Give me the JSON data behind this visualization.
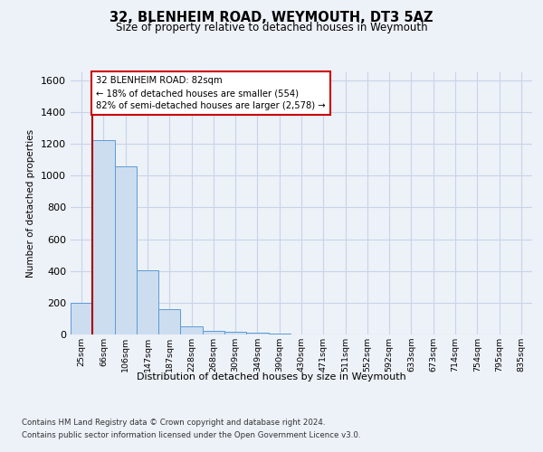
{
  "title": "32, BLENHEIM ROAD, WEYMOUTH, DT3 5AZ",
  "subtitle": "Size of property relative to detached houses in Weymouth",
  "xlabel": "Distribution of detached houses by size in Weymouth",
  "ylabel": "Number of detached properties",
  "categories": [
    "25sqm",
    "66sqm",
    "106sqm",
    "147sqm",
    "187sqm",
    "228sqm",
    "268sqm",
    "309sqm",
    "349sqm",
    "390sqm",
    "430sqm",
    "471sqm",
    "511sqm",
    "552sqm",
    "592sqm",
    "633sqm",
    "673sqm",
    "714sqm",
    "754sqm",
    "795sqm",
    "835sqm"
  ],
  "values": [
    200,
    1225,
    1060,
    405,
    160,
    50,
    20,
    15,
    10,
    3,
    2,
    0,
    0,
    0,
    0,
    0,
    0,
    0,
    0,
    0,
    0
  ],
  "bar_color": "#ccddf0",
  "bar_edge_color": "#5b9bd5",
  "annotation_text": "32 BLENHEIM ROAD: 82sqm\n← 18% of detached houses are smaller (554)\n82% of semi-detached houses are larger (2,578) →",
  "annotation_box_color": "#ffffff",
  "annotation_border_color": "#cc0000",
  "property_line_color": "#aa0000",
  "ylim": [
    0,
    1650
  ],
  "yticks": [
    0,
    200,
    400,
    600,
    800,
    1000,
    1200,
    1400,
    1600
  ],
  "grid_color": "#c8d4e8",
  "footer_line1": "Contains HM Land Registry data © Crown copyright and database right 2024.",
  "footer_line2": "Contains public sector information licensed under the Open Government Licence v3.0.",
  "bg_color": "#edf1f8",
  "plot_bg_color": "#edf1f8"
}
